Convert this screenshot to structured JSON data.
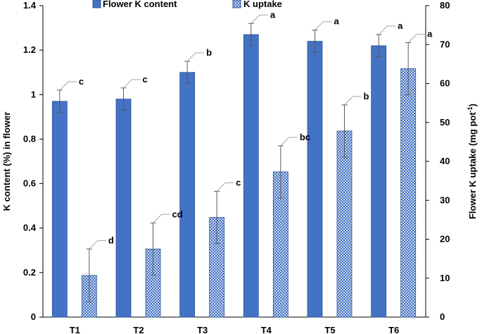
{
  "chart_data": {
    "type": "bar",
    "categories": [
      "T1",
      "T2",
      "T3",
      "T4",
      "T5",
      "T6"
    ],
    "series": [
      {
        "name": "Flower K content",
        "axis": "left",
        "values": [
          0.97,
          0.98,
          1.1,
          1.27,
          1.24,
          1.22
        ],
        "error": [
          0.05,
          0.05,
          0.05,
          0.05,
          0.05,
          0.05
        ],
        "letters": [
          "c",
          "c",
          "b",
          "a",
          "a",
          "a"
        ],
        "color": "#4472C4",
        "pattern": "solid"
      },
      {
        "name": "K uptake",
        "axis": "right",
        "values": [
          10.7,
          17.5,
          25.6,
          37.3,
          47.8,
          63.8
        ],
        "error": [
          6.8,
          6.7,
          6.7,
          6.7,
          6.7,
          6.7
        ],
        "letters": [
          "d",
          "cd",
          "c",
          "bc",
          "b",
          "a"
        ],
        "color": "#4472C4",
        "pattern": "checker"
      }
    ],
    "y_left": {
      "label": "K content (%) in flower",
      "min": 0,
      "max": 1.4,
      "ticks": [
        "0",
        "0.2",
        "0.4",
        "0.6",
        "0.8",
        "1",
        "1.2",
        "1.4"
      ]
    },
    "y_right": {
      "label": "Flower K uptake (mg pot",
      "label_sup": "-1",
      "label_end": ")",
      "min": 0,
      "max": 80,
      "ticks": [
        "0",
        "10",
        "20",
        "30",
        "40",
        "50",
        "60",
        "70",
        "80"
      ]
    },
    "legend": "top",
    "grid": false
  }
}
